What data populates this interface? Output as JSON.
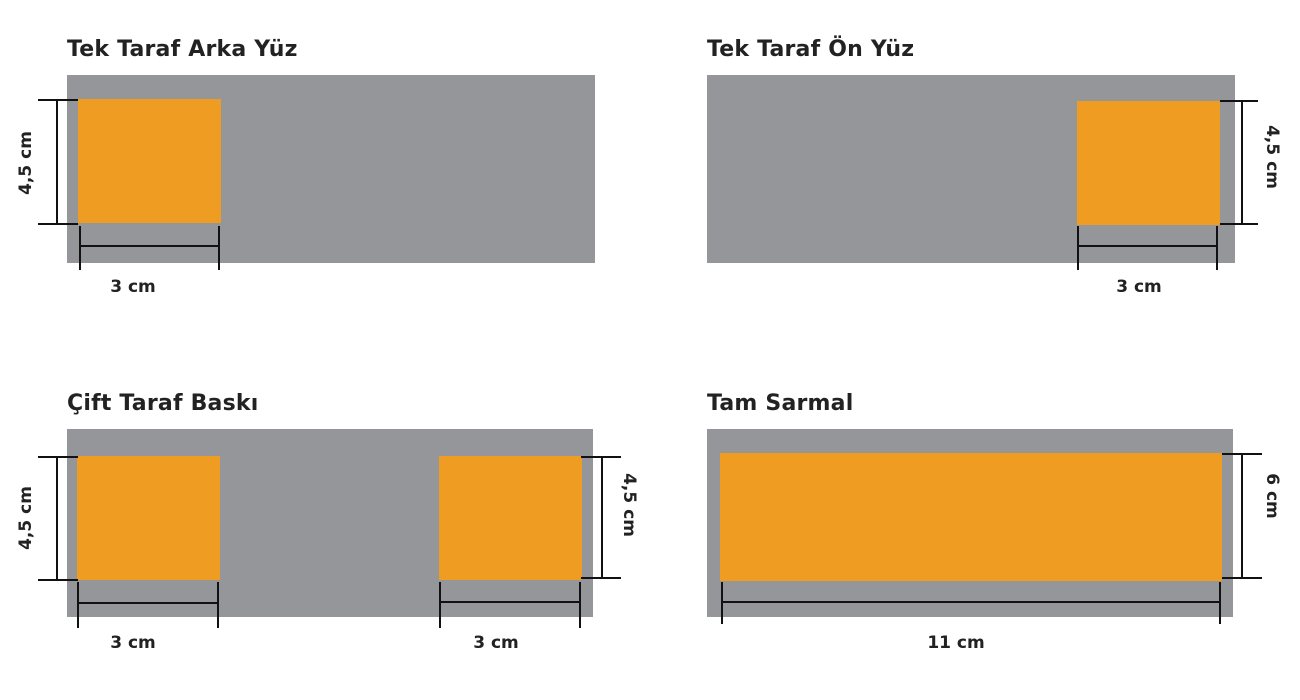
{
  "colors": {
    "substrate": "#959699",
    "print_area": "#ef9c23",
    "dimension_line": "#111111",
    "text": "#222222"
  },
  "panels": [
    {
      "id": "tek-taraf-arka-yuz",
      "title": "Tek Taraf Arka Yüz",
      "width_label": "3 cm",
      "height_label": "4,5 cm"
    },
    {
      "id": "tek-taraf-on-yuz",
      "title": "Tek Taraf Ön Yüz",
      "width_label": "3 cm",
      "height_label": "4,5 cm"
    },
    {
      "id": "cift-taraf-baski",
      "title": "Çift Taraf Baskı",
      "left_width_label": "3 cm",
      "left_height_label": "4,5 cm",
      "right_width_label": "3 cm",
      "right_height_label": "4,5 cm"
    },
    {
      "id": "tam-sarmal",
      "title": "Tam Sarmal",
      "width_label": "11 cm",
      "height_label": "6 cm"
    }
  ]
}
